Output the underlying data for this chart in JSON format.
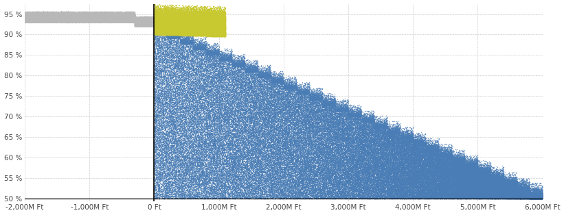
{
  "xlim": [
    -2000,
    6000
  ],
  "ylim": [
    0.493,
    0.975
  ],
  "xticks": [
    -2000,
    -1000,
    0,
    1000,
    2000,
    3000,
    4000,
    5000,
    6000
  ],
  "yticks": [
    0.5,
    0.55,
    0.6,
    0.65,
    0.7,
    0.75,
    0.8,
    0.85,
    0.9,
    0.95
  ],
  "xtick_labels": [
    "-2,000M Ft",
    "-1,000M Ft",
    "0 Ft",
    "1,000M Ft",
    "2,000M Ft",
    "3,000M Ft",
    "4,000M Ft",
    "5,000M Ft",
    "6,000M Ft"
  ],
  "ytick_labels": [
    "50 %",
    "55 %",
    "60 %",
    "65 %",
    "70 %",
    "75 %",
    "80 %",
    "85 %",
    "90 %",
    "95 %"
  ],
  "color_gray": "#b8b8b8",
  "color_yellow": "#c8c830",
  "color_blue": "#4a7db5",
  "bg_color": "#ffffff",
  "vline_x": 0,
  "hline_y": 0.5,
  "seed": 42,
  "dot_size": 1.0
}
